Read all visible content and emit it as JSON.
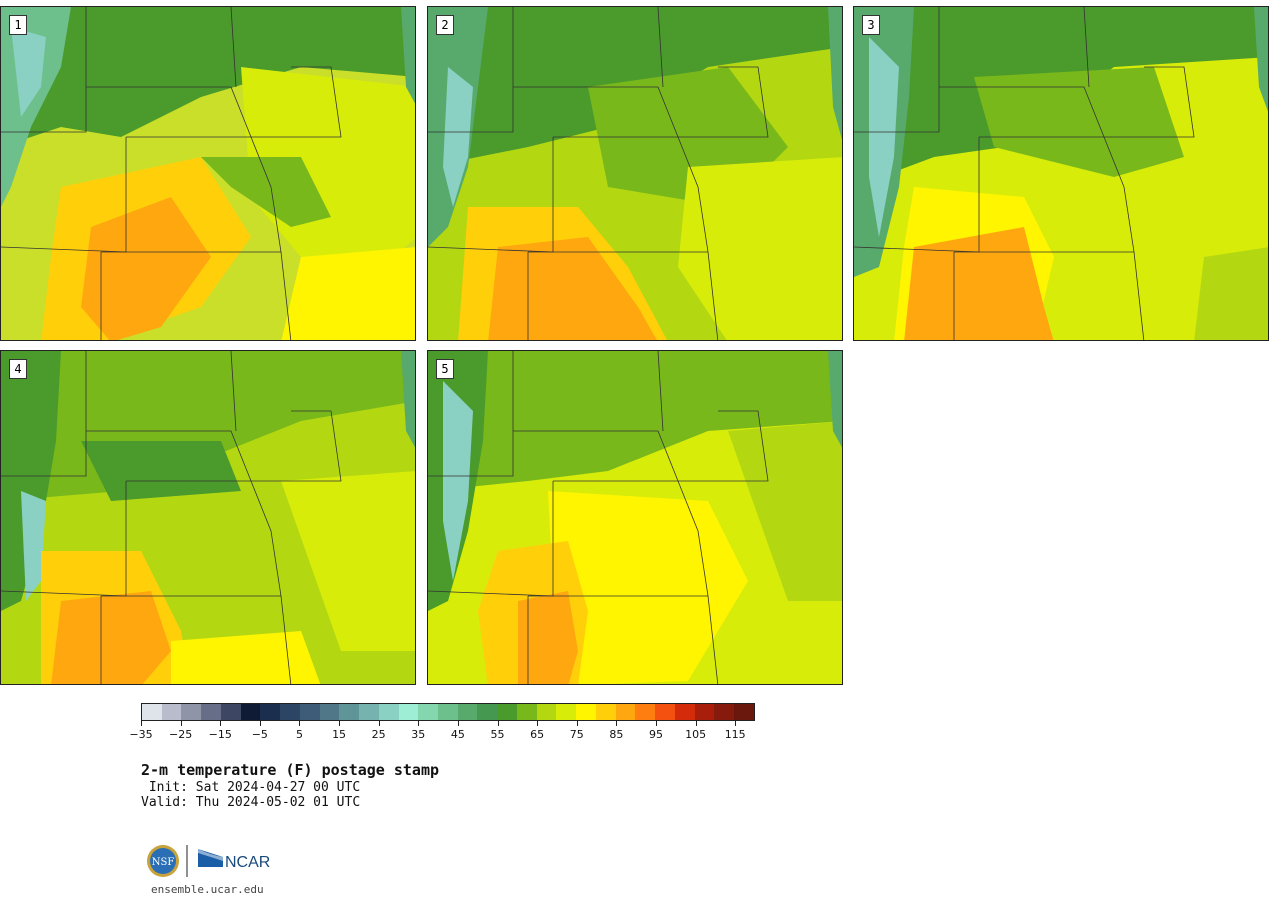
{
  "panels": [
    {
      "label": "1"
    },
    {
      "label": "2"
    },
    {
      "label": "3"
    },
    {
      "label": "4"
    },
    {
      "label": "5"
    }
  ],
  "colorbar": {
    "colors": [
      "#dfe3ea",
      "#b9bccc",
      "#8f94a8",
      "#676e87",
      "#3d4663",
      "#0f1a35",
      "#1b2e4e",
      "#2d4564",
      "#3e5c77",
      "#4f7788",
      "#5f9599",
      "#76b3ae",
      "#8ad0c3",
      "#9eeed6",
      "#83d6ad",
      "#6dbf8b",
      "#58aa6c",
      "#44984f",
      "#4a9b2b",
      "#79b81b",
      "#b3d812",
      "#d8ec0a",
      "#fff500",
      "#ffcf0a",
      "#ffa70e",
      "#ff7e10",
      "#f45010",
      "#d42b0b",
      "#a81e0b",
      "#861a0d",
      "#6a170e"
    ],
    "tick_labels": [
      "−35",
      "−25",
      "−15",
      "−5",
      "5",
      "15",
      "25",
      "35",
      "45",
      "55",
      "65",
      "75",
      "85",
      "95",
      "105",
      "115"
    ]
  },
  "title": "2-m temperature (F) postage stamp",
  "init": " Init: Sat 2024-04-27 00 UTC",
  "valid": "Valid: Thu 2024-05-02 01 UTC",
  "logo": {
    "nsf": "NSF",
    "ncar": "NCAR"
  },
  "url": "ensemble.ucar.edu"
}
